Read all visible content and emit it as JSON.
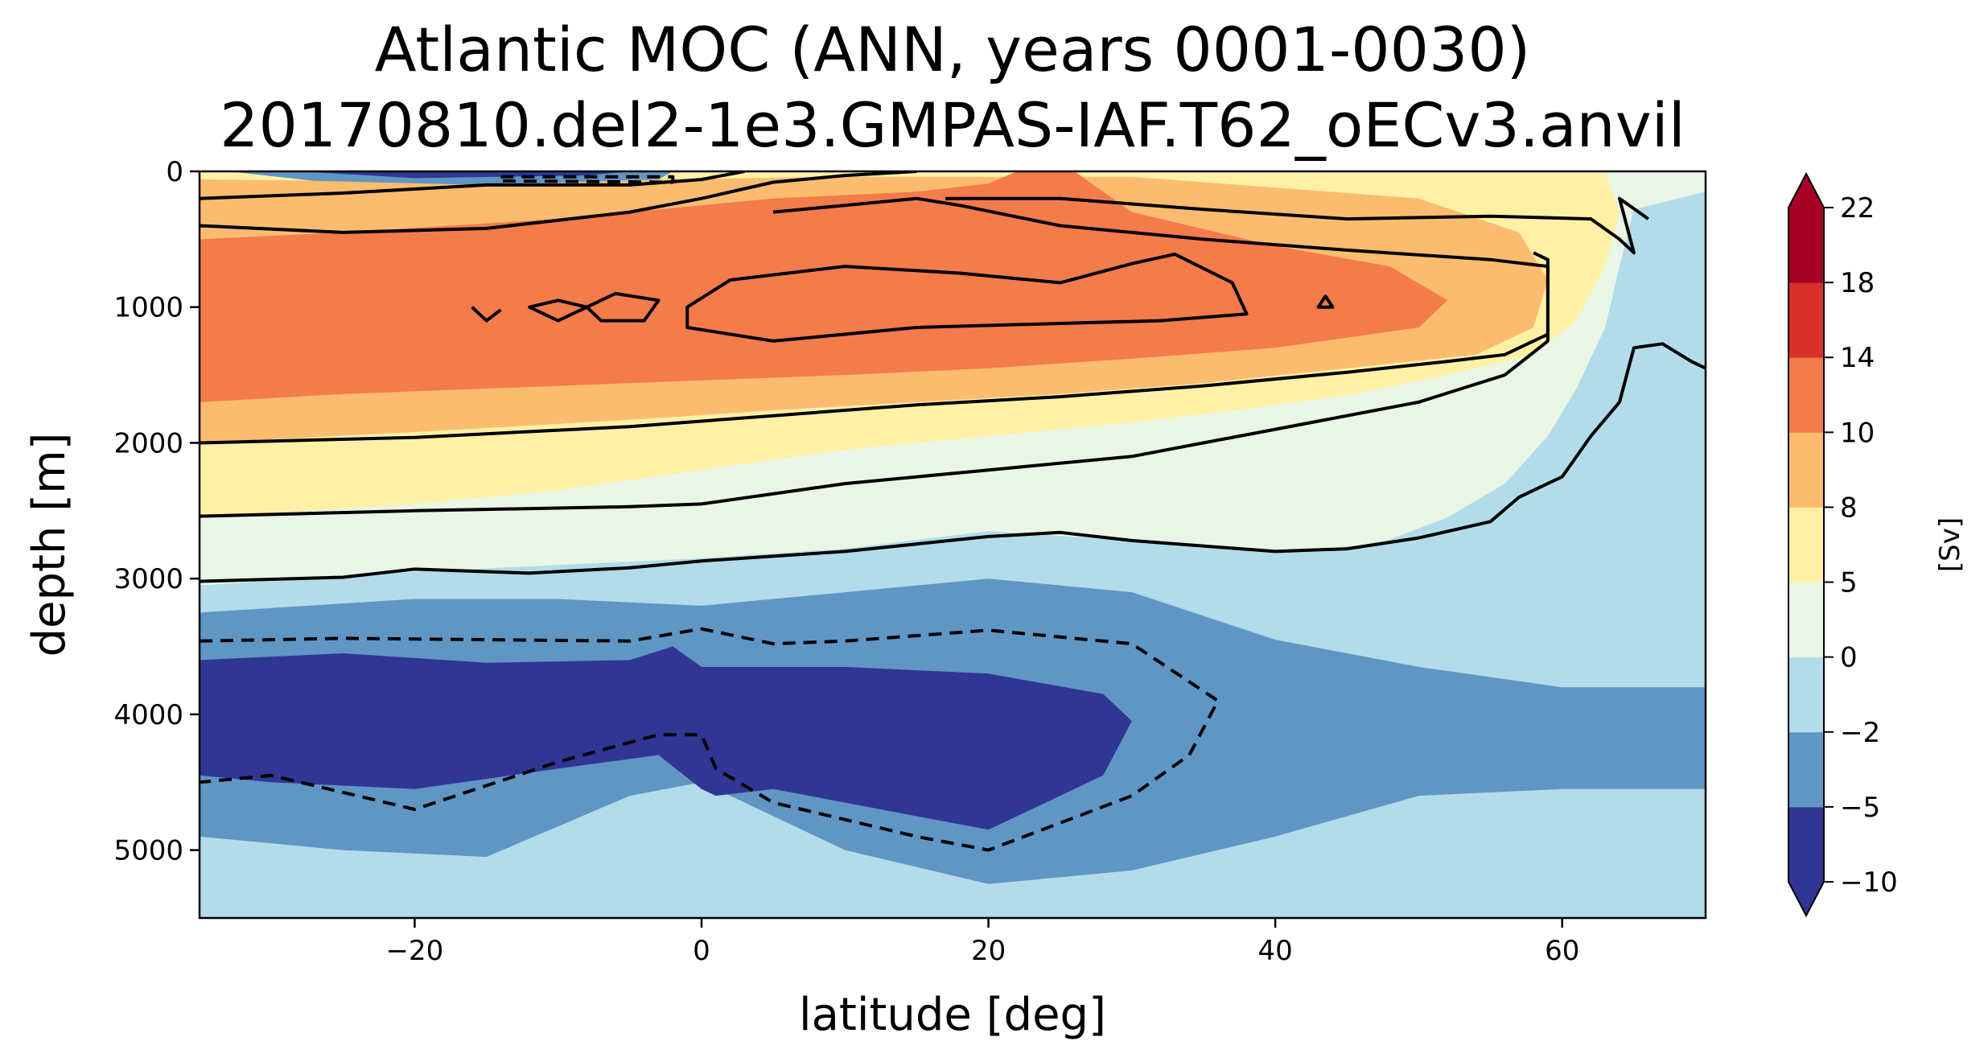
{
  "chart_data": {
    "type": "heatmap",
    "title_lines": [
      "Atlantic MOC (ANN, years 0001-0030)",
      "20170810.del2-1e3.GMPAS-IAF.T62_oECv3.anvil"
    ],
    "xlabel": "latitude [deg]",
    "ylabel": "depth [m]",
    "xlim": [
      -35,
      70
    ],
    "ylim": [
      5500,
      0
    ],
    "y_inverted": true,
    "x_ticks": [
      -20,
      0,
      20,
      40,
      60
    ],
    "x_tick_labels": [
      "−20",
      "0",
      "20",
      "40",
      "60"
    ],
    "y_ticks": [
      0,
      1000,
      2000,
      3000,
      4000,
      5000
    ],
    "y_tick_labels": [
      "0",
      "1000",
      "2000",
      "3000",
      "4000",
      "5000"
    ],
    "colorbar": {
      "label": "[Sv]",
      "levels": [
        -10,
        -5,
        -2,
        0,
        5,
        8,
        10,
        14,
        18,
        22
      ],
      "tick_labels": [
        "−10",
        "−5",
        "−2",
        "0",
        "5",
        "8",
        "10",
        "14",
        "18",
        "22"
      ],
      "colors": [
        "#313695",
        "#6096c4",
        "#b2dcea",
        "#e9f5e5",
        "#fef1a6",
        "#fcbc6f",
        "#f47b4a",
        "#d6312a",
        "#a50026"
      ],
      "under_color": "#313695",
      "over_color": "#a50026",
      "extend": "both"
    },
    "contour_lines": {
      "color": "#000000",
      "negative_linestyle": "dashed",
      "positive_linestyle": "solid"
    },
    "regions": [
      {
        "value_range": [
          -2,
          0
        ],
        "x": [
          -35,
          70
        ],
        "depth_range": [
          0,
          5500
        ],
        "note": "background"
      },
      {
        "value_range": [
          0,
          5
        ],
        "x": [
          -35,
          65
        ],
        "depth": [
          0,
          3050
        ]
      },
      {
        "value_range": [
          5,
          8
        ],
        "x": [
          -35,
          64
        ],
        "depth": [
          0,
          2550
        ]
      },
      {
        "value_range": [
          8,
          10
        ],
        "x": [
          -35,
          59
        ],
        "depth": [
          50,
          2000
        ]
      },
      {
        "value_range": [
          10,
          14
        ],
        "x": [
          -35,
          52
        ],
        "depth": [
          100,
          1750
        ]
      },
      {
        "value_range": [
          -2,
          -5
        ],
        "x": [
          -35,
          70
        ],
        "depth": [
          3200,
          5300
        ]
      },
      {
        "value_range": [
          -5,
          -10
        ],
        "x": [
          -35,
          30
        ],
        "depth": [
          3500,
          4850
        ]
      },
      {
        "value_range": [
          -10,
          -5
        ],
        "x": [
          -33,
          -2
        ],
        "depth": [
          0,
          80
        ],
        "note": "near-surface negative cell"
      }
    ]
  }
}
